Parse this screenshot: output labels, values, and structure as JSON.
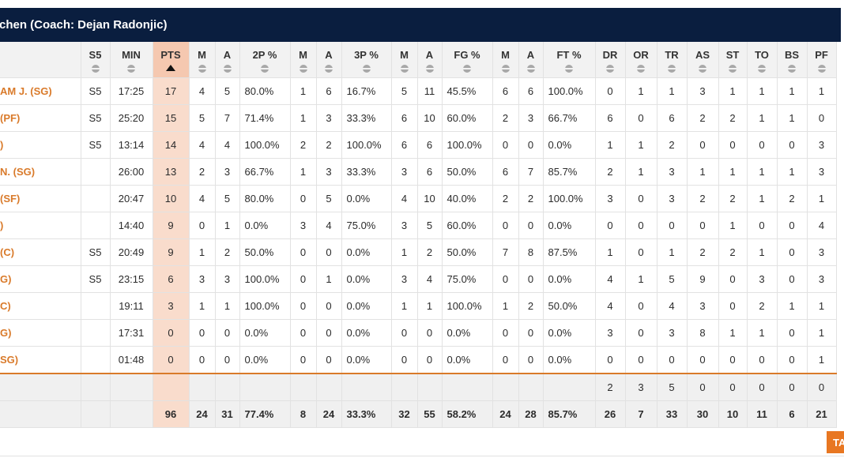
{
  "team": {
    "title": "chen (Coach: Dejan Radonjic)"
  },
  "columns": [
    "",
    "S5",
    "MIN",
    "PTS",
    "M",
    "A",
    "2P %",
    "M",
    "A",
    "3P %",
    "M",
    "A",
    "FG %",
    "M",
    "A",
    "FT %",
    "DR",
    "OR",
    "TR",
    "AS",
    "ST",
    "TO",
    "BS",
    "PF"
  ],
  "sorted_column": "PTS",
  "players": [
    [
      "AM J. (SG)",
      "S5",
      "17:25",
      "17",
      "4",
      "5",
      "80.0%",
      "1",
      "6",
      "16.7%",
      "5",
      "11",
      "45.5%",
      "6",
      "6",
      "100.0%",
      "0",
      "1",
      "1",
      "3",
      "1",
      "1",
      "1",
      "1"
    ],
    [
      "(PF)",
      "S5",
      "25:20",
      "15",
      "5",
      "7",
      "71.4%",
      "1",
      "3",
      "33.3%",
      "6",
      "10",
      "60.0%",
      "2",
      "3",
      "66.7%",
      "6",
      "0",
      "6",
      "2",
      "2",
      "1",
      "1",
      "0"
    ],
    [
      ")",
      "S5",
      "13:14",
      "14",
      "4",
      "4",
      "100.0%",
      "2",
      "2",
      "100.0%",
      "6",
      "6",
      "100.0%",
      "0",
      "0",
      "0.0%",
      "1",
      "1",
      "2",
      "0",
      "0",
      "0",
      "0",
      "3"
    ],
    [
      "N. (SG)",
      "",
      "26:00",
      "13",
      "2",
      "3",
      "66.7%",
      "1",
      "3",
      "33.3%",
      "3",
      "6",
      "50.0%",
      "6",
      "7",
      "85.7%",
      "2",
      "1",
      "3",
      "1",
      "1",
      "1",
      "1",
      "3"
    ],
    [
      " (SF)",
      "",
      "20:47",
      "10",
      "4",
      "5",
      "80.0%",
      "0",
      "5",
      "0.0%",
      "4",
      "10",
      "40.0%",
      "2",
      "2",
      "100.0%",
      "3",
      "0",
      "3",
      "2",
      "2",
      "1",
      "2",
      "1"
    ],
    [
      ")",
      "",
      "14:40",
      "9",
      "0",
      "1",
      "0.0%",
      "3",
      "4",
      "75.0%",
      "3",
      "5",
      "60.0%",
      "0",
      "0",
      "0.0%",
      "0",
      "0",
      "0",
      "0",
      "1",
      "0",
      "0",
      "4"
    ],
    [
      "(C)",
      "S5",
      "20:49",
      "9",
      "1",
      "2",
      "50.0%",
      "0",
      "0",
      "0.0%",
      "1",
      "2",
      "50.0%",
      "7",
      "8",
      "87.5%",
      "1",
      "0",
      "1",
      "2",
      "2",
      "1",
      "0",
      "3"
    ],
    [
      "G)",
      "S5",
      "23:15",
      "6",
      "3",
      "3",
      "100.0%",
      "0",
      "1",
      "0.0%",
      "3",
      "4",
      "75.0%",
      "0",
      "0",
      "0.0%",
      "4",
      "1",
      "5",
      "9",
      "0",
      "3",
      "0",
      "3"
    ],
    [
      "C)",
      "",
      "19:11",
      "3",
      "1",
      "1",
      "100.0%",
      "0",
      "0",
      "0.0%",
      "1",
      "1",
      "100.0%",
      "1",
      "2",
      "50.0%",
      "4",
      "0",
      "4",
      "3",
      "0",
      "2",
      "1",
      "1"
    ],
    [
      "G)",
      "",
      "17:31",
      "0",
      "0",
      "0",
      "0.0%",
      "0",
      "0",
      "0.0%",
      "0",
      "0",
      "0.0%",
      "0",
      "0",
      "0.0%",
      "3",
      "0",
      "3",
      "8",
      "1",
      "1",
      "0",
      "1"
    ],
    [
      "SG)",
      "",
      "01:48",
      "0",
      "0",
      "0",
      "0.0%",
      "0",
      "0",
      "0.0%",
      "0",
      "0",
      "0.0%",
      "0",
      "0",
      "0.0%",
      "0",
      "0",
      "0",
      "0",
      "0",
      "0",
      "0",
      "1"
    ]
  ],
  "team_row": [
    "",
    "",
    "",
    "",
    "",
    "",
    "",
    "",
    "",
    "",
    "",
    "",
    "",
    "",
    "",
    "",
    "2",
    "3",
    "5",
    "0",
    "0",
    "0",
    "0",
    "0"
  ],
  "totals_row": [
    "",
    "",
    "",
    "96",
    "24",
    "31",
    "77.4%",
    "8",
    "24",
    "33.3%",
    "32",
    "55",
    "58.2%",
    "24",
    "28",
    "85.7%",
    "26",
    "7",
    "33",
    "30",
    "10",
    "11",
    "6",
    "21"
  ],
  "tab_button": {
    "label": "TA"
  },
  "colors": {
    "header_bg": "#0a1e3f",
    "accent": "#d97a2a",
    "pts_highlight": "#f9dccc",
    "tab_button": "#e87722"
  }
}
